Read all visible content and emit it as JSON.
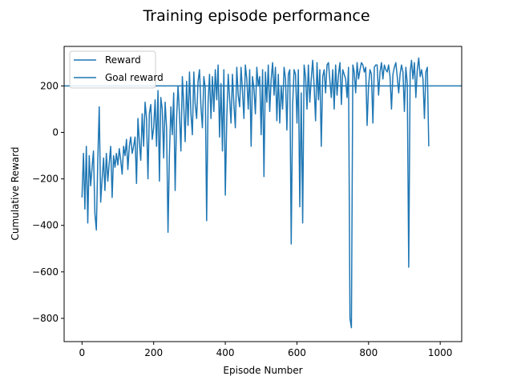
{
  "chart_data": {
    "type": "line",
    "title": "Training episode performance",
    "xlabel": "Episode Number",
    "ylabel": "Cumulative Reward",
    "xlim": [
      -50,
      1060
    ],
    "ylim": [
      -900,
      370
    ],
    "xticks": [
      0,
      200,
      400,
      600,
      800,
      1000
    ],
    "yticks": [
      -800,
      -600,
      -400,
      -200,
      0,
      200
    ],
    "grid": false,
    "legend_position": "upper-left",
    "colors": {
      "line": "#1f77b4"
    },
    "series": [
      {
        "name": "Reward",
        "x_start": 0,
        "x_step": 4,
        "values": [
          -280,
          -90,
          -330,
          -60,
          -390,
          -100,
          -230,
          -150,
          -80,
          -350,
          -420,
          -120,
          110,
          -300,
          -200,
          -110,
          -250,
          -90,
          -210,
          -130,
          -60,
          -280,
          -100,
          -150,
          -90,
          -140,
          -70,
          -120,
          -180,
          -60,
          -100,
          -30,
          -160,
          -60,
          -20,
          -90,
          -60,
          -20,
          -220,
          60,
          -40,
          -120,
          80,
          -60,
          130,
          60,
          -200,
          80,
          120,
          -30,
          20,
          140,
          -60,
          180,
          -210,
          150,
          100,
          -110,
          130,
          20,
          -430,
          -90,
          110,
          -10,
          170,
          -250,
          60,
          200,
          80,
          -80,
          240,
          120,
          -40,
          220,
          30,
          260,
          80,
          -10,
          260,
          120,
          60,
          220,
          270,
          110,
          20,
          240,
          190,
          -380,
          130,
          250,
          60,
          240,
          90,
          270,
          140,
          290,
          -20,
          210,
          -80,
          270,
          -270,
          60,
          250,
          150,
          40,
          250,
          120,
          20,
          280,
          160,
          110,
          280,
          180,
          60,
          290,
          230,
          100,
          270,
          -60,
          240,
          190,
          80,
          280,
          200,
          240,
          -10,
          270,
          -190,
          260,
          130,
          290,
          90,
          230,
          300,
          160,
          280,
          50,
          250,
          40,
          200,
          100,
          280,
          230,
          10,
          250,
          270,
          -480,
          120,
          270,
          250,
          40,
          270,
          -320,
          170,
          -390,
          290,
          240,
          100,
          290,
          130,
          230,
          310,
          200,
          50,
          300,
          140,
          270,
          -60,
          240,
          270,
          170,
          290,
          300,
          220,
          150,
          270,
          100,
          290,
          160,
          250,
          300,
          120,
          270,
          250,
          230,
          150,
          280,
          -800,
          -840,
          290,
          260,
          170,
          300,
          230,
          270,
          300,
          290,
          260,
          280,
          30,
          200,
          270,
          250,
          40,
          280,
          290,
          290,
          160,
          260,
          300,
          230,
          290,
          270,
          260,
          290,
          240,
          100,
          250,
          280,
          300,
          240,
          170,
          250,
          290,
          260,
          90,
          280,
          210,
          -580,
          260,
          310,
          230,
          300,
          150,
          270,
          320,
          240,
          270,
          230,
          60,
          260,
          280,
          -60
        ]
      },
      {
        "name": "Goal reward",
        "constant": 200
      }
    ]
  }
}
